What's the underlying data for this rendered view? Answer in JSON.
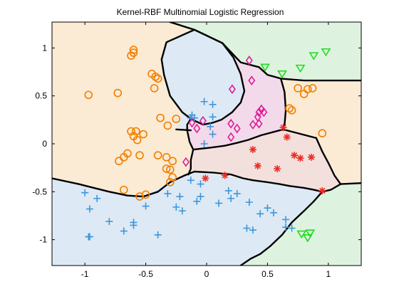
{
  "figure": {
    "background": "#ffffff"
  },
  "chart_data": {
    "type": "scatter",
    "title": "Kernel-RBF Multinomial Logistic Regression",
    "xlabel": "",
    "ylabel": "",
    "xlim": [
      -1.27,
      1.27
    ],
    "ylim": [
      -1.27,
      1.27
    ],
    "xticks": [
      -1,
      -0.5,
      0,
      0.5,
      1
    ],
    "yticks": [
      -1,
      -0.5,
      0,
      0.5,
      1
    ],
    "xtick_labels": [
      "-1",
      "-0.5",
      "0",
      "0.5",
      "1"
    ],
    "ytick_labels": [
      "-1",
      "-0.5",
      "0",
      "0.5",
      "1"
    ],
    "grid": false,
    "legend": null,
    "decision_boundaries": [
      [
        [
          -0.3,
          1.27
        ],
        [
          -0.1,
          1.19
        ],
        [
          0.0,
          1.13
        ],
        [
          0.13,
          1.05
        ]
      ],
      [
        [
          -0.1,
          1.19
        ],
        [
          -0.33,
          1.06
        ],
        [
          -0.37,
          0.88
        ],
        [
          -0.35,
          0.72
        ],
        [
          -0.3,
          0.5
        ],
        [
          -0.2,
          0.33
        ],
        [
          -0.13,
          0.26
        ],
        [
          -0.03,
          0.2
        ],
        [
          0.05,
          0.22
        ],
        [
          0.12,
          0.25
        ],
        [
          0.21,
          0.33
        ],
        [
          0.28,
          0.43
        ],
        [
          0.31,
          0.55
        ],
        [
          0.28,
          0.73
        ],
        [
          0.22,
          0.9
        ],
        [
          0.13,
          1.05
        ],
        [
          -0.1,
          1.19
        ]
      ],
      [
        [
          0.13,
          1.05
        ],
        [
          0.28,
          0.85
        ],
        [
          0.43,
          0.8
        ],
        [
          0.5,
          0.72
        ],
        [
          0.61,
          0.68
        ],
        [
          0.8,
          0.66
        ],
        [
          1.27,
          0.66
        ]
      ],
      [
        [
          0.61,
          0.68
        ],
        [
          0.64,
          0.54
        ],
        [
          0.65,
          0.35
        ],
        [
          0.64,
          0.2
        ],
        [
          0.63,
          0.15
        ],
        [
          0.69,
          0.13
        ],
        [
          0.9,
          0.06
        ]
      ],
      [
        [
          0.63,
          0.15
        ],
        [
          0.6,
          0.14
        ],
        [
          0.45,
          0.09
        ],
        [
          0.34,
          0.04
        ],
        [
          0.25,
          0.01
        ],
        [
          0.15,
          -0.02
        ],
        [
          0.03,
          -0.04
        ],
        [
          -0.11,
          -0.06
        ],
        [
          -0.13,
          -0.17
        ],
        [
          -0.13,
          -0.26
        ],
        [
          -0.15,
          -0.32
        ]
      ],
      [
        [
          -0.13,
          0.26
        ],
        [
          -0.16,
          0.2
        ],
        [
          -0.16,
          0.14
        ],
        [
          -0.14,
          0.02
        ],
        [
          -0.11,
          -0.06
        ]
      ],
      [
        [
          -0.25,
          0.15
        ],
        [
          -0.13,
          0.14
        ]
      ],
      [
        [
          -1.27,
          -0.36
        ],
        [
          -1.05,
          -0.42
        ],
        [
          -0.8,
          -0.5
        ],
        [
          -0.65,
          -0.54
        ],
        [
          -0.52,
          -0.55
        ],
        [
          -0.4,
          -0.5
        ],
        [
          -0.3,
          -0.4
        ],
        [
          -0.18,
          -0.33
        ],
        [
          -0.1,
          -0.29
        ],
        [
          0.05,
          -0.3
        ],
        [
          0.2,
          -0.32
        ],
        [
          0.3,
          -0.36
        ],
        [
          0.38,
          -0.38
        ],
        [
          0.5,
          -0.4
        ],
        [
          0.6,
          -0.42
        ],
        [
          0.68,
          -0.44
        ],
        [
          0.8,
          -0.46
        ],
        [
          0.88,
          -0.48
        ],
        [
          0.95,
          -0.5
        ],
        [
          1.02,
          -0.48
        ],
        [
          1.1,
          -0.42
        ],
        [
          1.27,
          -0.41
        ]
      ],
      [
        [
          0.9,
          0.06
        ],
        [
          0.95,
          -0.08
        ],
        [
          1.0,
          -0.2
        ],
        [
          1.05,
          -0.33
        ],
        [
          1.1,
          -0.42
        ]
      ],
      [
        [
          0.95,
          -0.5
        ],
        [
          0.88,
          -0.6
        ],
        [
          0.8,
          -0.7
        ],
        [
          0.7,
          -0.82
        ],
        [
          0.62,
          -0.95
        ],
        [
          0.52,
          -1.07
        ],
        [
          0.44,
          -1.15
        ],
        [
          0.36,
          -1.2
        ],
        [
          0.28,
          -1.27
        ]
      ]
    ],
    "series": [
      {
        "marker": "circle",
        "color": "#f08000",
        "x": [
          -0.97,
          -0.73,
          -0.6,
          -0.6,
          -0.62,
          -0.45,
          -0.42,
          -0.4,
          -0.43,
          -0.38,
          -0.25,
          -0.58,
          -0.62,
          -0.52,
          -0.6,
          -0.57,
          -0.65,
          -0.68,
          -0.72,
          -0.55,
          -0.4,
          -0.33,
          -0.28,
          -0.3,
          -0.33,
          -0.28,
          -0.3,
          -0.5,
          -0.55,
          -0.68,
          -0.32,
          0.75,
          0.8,
          0.83,
          0.87,
          0.68,
          0.7,
          0.95
        ],
        "y": [
          0.51,
          0.53,
          0.98,
          0.95,
          0.92,
          0.73,
          0.7,
          0.68,
          0.58,
          0.27,
          0.26,
          0.13,
          0.13,
          0.1,
          0.08,
          0.04,
          -0.1,
          -0.14,
          -0.18,
          -0.12,
          -0.12,
          -0.14,
          -0.18,
          -0.27,
          -0.26,
          -0.35,
          -0.4,
          -0.53,
          -0.55,
          -0.48,
          0.19,
          0.58,
          0.52,
          0.57,
          0.58,
          0.37,
          0.35,
          0.11
        ]
      },
      {
        "marker": "plus",
        "color": "#3c96dc",
        "x": [
          -0.02,
          0.05,
          -0.13,
          -0.12,
          -0.1,
          0.05,
          0.03,
          0.05,
          -0.02,
          -0.22,
          -0.32,
          -0.13,
          -0.05,
          -0.05,
          -0.6,
          -0.68,
          -0.9,
          -0.97,
          -0.96,
          -1.0,
          -0.96,
          -0.6,
          -0.8,
          -0.4,
          -0.25,
          -0.5,
          -0.2,
          -0.08,
          0.1,
          0.18,
          0.2,
          0.25,
          0.35,
          0.33,
          0.38,
          0.44,
          0.5,
          0.55,
          0.65,
          0.7,
          0.65
        ],
        "y": [
          0.44,
          0.41,
          0.27,
          0.3,
          0.27,
          0.28,
          0.18,
          0.1,
          0.0,
          -0.55,
          -0.52,
          -0.38,
          -0.42,
          -0.55,
          -0.82,
          -0.91,
          -0.57,
          -0.97,
          -0.97,
          -0.51,
          -0.68,
          -0.85,
          -0.81,
          -0.95,
          -0.66,
          -0.65,
          -0.7,
          -0.6,
          -0.62,
          -0.49,
          -0.57,
          -0.52,
          -0.61,
          -0.88,
          -0.9,
          -0.73,
          -0.67,
          -0.72,
          -0.79,
          -0.88,
          -0.87
        ]
      },
      {
        "marker": "diamond",
        "color": "#dc1e98",
        "x": [
          0.35,
          0.37,
          0.21,
          0.43,
          0.43,
          0.47,
          0.42,
          0.45,
          0.38,
          0.2,
          0.25,
          0.2,
          -0.08,
          -0.12,
          -0.03,
          -0.17
        ],
        "y": [
          0.87,
          0.66,
          0.57,
          0.33,
          0.21,
          0.33,
          0.28,
          0.36,
          0.2,
          0.21,
          0.16,
          0.07,
          0.16,
          0.22,
          0.24,
          -0.19
        ]
      },
      {
        "marker": "asterisk",
        "color": "#eb2d23",
        "x": [
          0.63,
          0.66,
          0.72,
          0.77,
          0.86,
          0.95,
          0.38,
          0.42,
          0.58,
          0.15,
          -0.01
        ],
        "y": [
          0.17,
          0.07,
          -0.12,
          -0.15,
          -0.14,
          -0.49,
          -0.06,
          -0.23,
          -0.26,
          -0.33,
          -0.36
        ]
      },
      {
        "marker": "triangle-down",
        "color": "#1edc1e",
        "x": [
          0.48,
          0.62,
          0.77,
          0.88,
          0.98,
          0.78,
          0.83,
          0.85
        ],
        "y": [
          0.8,
          0.73,
          0.79,
          0.92,
          0.96,
          -0.94,
          -0.98,
          -0.93
        ]
      }
    ]
  }
}
